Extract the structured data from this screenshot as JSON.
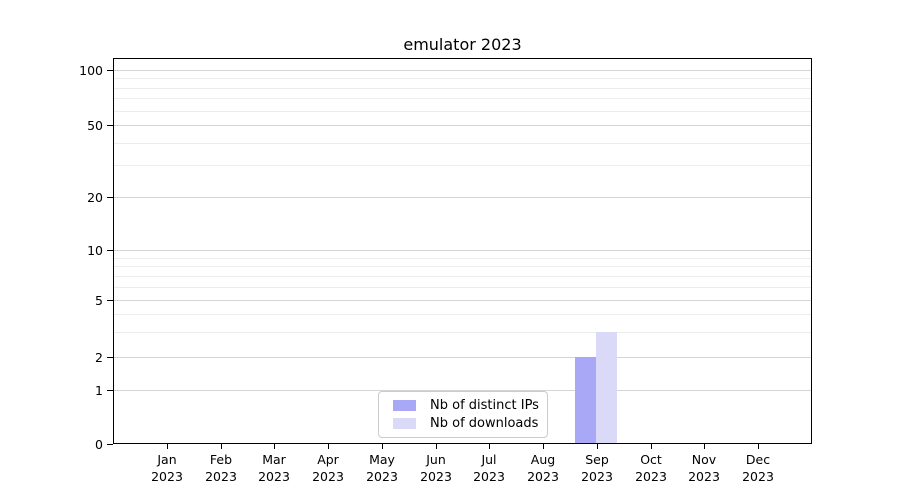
{
  "chart_data": {
    "type": "bar",
    "title": "emulator 2023",
    "categories": [
      "Jan",
      "Feb",
      "Mar",
      "Apr",
      "May",
      "Jun",
      "Jul",
      "Aug",
      "Sep",
      "Oct",
      "Nov",
      "Dec"
    ],
    "category_year": "2023",
    "series": [
      {
        "name": "Nb of distinct IPs",
        "color": "#a8a8f6",
        "values": [
          0,
          0,
          0,
          0,
          0,
          0,
          0,
          0,
          2,
          0,
          0,
          0
        ]
      },
      {
        "name": "Nb of downloads",
        "color": "#dadaf8",
        "values": [
          0,
          0,
          0,
          0,
          0,
          0,
          0,
          0,
          3,
          0,
          0,
          0
        ]
      }
    ],
    "y_axis": {
      "scale": "symlog",
      "ticks": [
        0,
        1,
        2,
        5,
        10,
        20,
        50,
        100
      ],
      "minor_ticks": [
        3,
        4,
        6,
        7,
        8,
        9,
        30,
        40,
        60,
        70,
        80,
        90
      ],
      "ylim": [
        0,
        100
      ]
    },
    "grid": "both",
    "legend_position": "lower center"
  }
}
